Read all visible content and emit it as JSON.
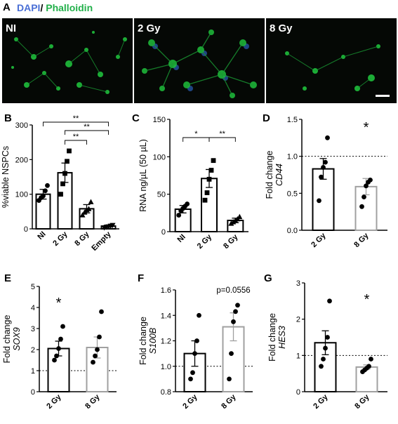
{
  "panel_letters": {
    "A": "A",
    "B": "B",
    "C": "C",
    "D": "D",
    "E": "E",
    "F": "F",
    "G": "G"
  },
  "stain": {
    "dapi": "DAPI",
    "sep": "/ ",
    "phalloidin": "Phalloidin",
    "dapi_color": "#4a6fd6",
    "phalloidin_color": "#22b04a"
  },
  "micrographs": [
    {
      "label": "NI"
    },
    {
      "label": "2 Gy"
    },
    {
      "label": "8 Gy"
    }
  ],
  "chart_data": [
    {
      "id": "B",
      "type": "bar",
      "ylabel": "%viable NSPCs",
      "categories": [
        "NI",
        "2 Gy",
        "8 Gy",
        "Empty"
      ],
      "values": [
        100,
        162,
        58,
        8
      ],
      "errors": [
        14,
        28,
        12,
        3
      ],
      "points": [
        [
          82,
          90,
          95,
          110,
          125
        ],
        [
          100,
          130,
          160,
          195,
          225
        ],
        [
          40,
          48,
          55,
          58,
          78
        ],
        [
          3,
          5,
          6,
          8,
          10
        ]
      ],
      "markers": [
        "circle",
        "square",
        "triangle",
        "triangle-down"
      ],
      "ylim": [
        0,
        300
      ],
      "yticks": [
        0,
        100,
        200,
        300
      ],
      "significance": [
        {
          "from": 0,
          "to": 3,
          "label": "**"
        },
        {
          "from": 1,
          "to": 3,
          "label": "**"
        },
        {
          "from": 1,
          "to": 2,
          "label": "**"
        }
      ]
    },
    {
      "id": "C",
      "type": "bar",
      "ylabel": "RNA ng/µL (50 µL)",
      "categories": [
        "NI",
        "2 Gy",
        "8 Gy"
      ],
      "values": [
        30,
        71,
        15
      ],
      "errors": [
        5,
        12,
        3
      ],
      "points": [
        [
          22,
          28,
          31,
          34,
          37
        ],
        [
          42,
          52,
          70,
          82,
          95
        ],
        [
          11,
          13,
          15,
          17,
          20
        ]
      ],
      "markers": [
        "circle",
        "square",
        "triangle"
      ],
      "ylim": [
        0,
        150
      ],
      "yticks": [
        0,
        50,
        100,
        150
      ],
      "significance": [
        {
          "from": 0,
          "to": 1,
          "label": "*"
        },
        {
          "from": 1,
          "to": 2,
          "label": "**"
        }
      ]
    },
    {
      "id": "D",
      "type": "bar",
      "ylabel": "Fold change",
      "gene": "CD44",
      "categories": [
        "2 Gy",
        "8 Gy"
      ],
      "values": [
        0.83,
        0.59
      ],
      "errors": [
        0.14,
        0.11
      ],
      "points": [
        [
          0.4,
          0.72,
          0.85,
          0.92,
          1.25
        ],
        [
          0.32,
          0.45,
          0.6,
          0.65,
          0.68
        ]
      ],
      "ylim": [
        0,
        1.5
      ],
      "yticks": [
        "0.0",
        "0.5",
        "1.0",
        "1.5"
      ],
      "reference": 1.0,
      "significance": [
        {
          "bar": 1,
          "label": "*"
        }
      ]
    },
    {
      "id": "E",
      "type": "bar",
      "ylabel": "Fold change",
      "gene": "SOX9",
      "categories": [
        "2 Gy",
        "8 Gy"
      ],
      "values": [
        2.05,
        2.1
      ],
      "errors": [
        0.35,
        0.5
      ],
      "points": [
        [
          1.5,
          1.7,
          2.05,
          2.5,
          3.1
        ],
        [
          1.4,
          1.7,
          2.0,
          2.6,
          3.8
        ]
      ],
      "ylim": [
        0,
        5
      ],
      "yticks": [
        0,
        1,
        2,
        3,
        4,
        5
      ],
      "reference": 1.0,
      "significance": [
        {
          "bar": 0,
          "label": "*"
        }
      ]
    },
    {
      "id": "F",
      "type": "bar",
      "ylabel": "Fold change",
      "gene": "S100B",
      "categories": [
        "2 Gy",
        "8 Gy"
      ],
      "values": [
        1.1,
        1.31
      ],
      "errors": [
        0.1,
        0.11
      ],
      "points": [
        [
          0.9,
          0.95,
          1.1,
          1.2,
          1.4
        ],
        [
          0.9,
          1.1,
          1.35,
          1.43,
          1.48
        ]
      ],
      "ylim": [
        0.8,
        1.6
      ],
      "yticks": [
        "0.8",
        "1.0",
        "1.2",
        "1.4",
        "1.6"
      ],
      "reference": 1.0,
      "significance": [
        {
          "bar": 1,
          "label": "p=0.0556"
        }
      ]
    },
    {
      "id": "G",
      "type": "bar",
      "ylabel": "Fold change",
      "gene": "HES3",
      "categories": [
        "2 Gy",
        "8 Gy"
      ],
      "values": [
        1.35,
        0.68
      ],
      "errors": [
        0.33,
        0.06
      ],
      "points": [
        [
          0.7,
          0.9,
          1.2,
          1.5,
          2.5
        ],
        [
          0.55,
          0.6,
          0.65,
          0.7,
          0.9
        ]
      ],
      "ylim": [
        0,
        3
      ],
      "yticks": [
        0,
        1,
        2,
        3
      ],
      "reference": 1.0,
      "significance": [
        {
          "bar": 1,
          "label": "*"
        }
      ]
    }
  ]
}
